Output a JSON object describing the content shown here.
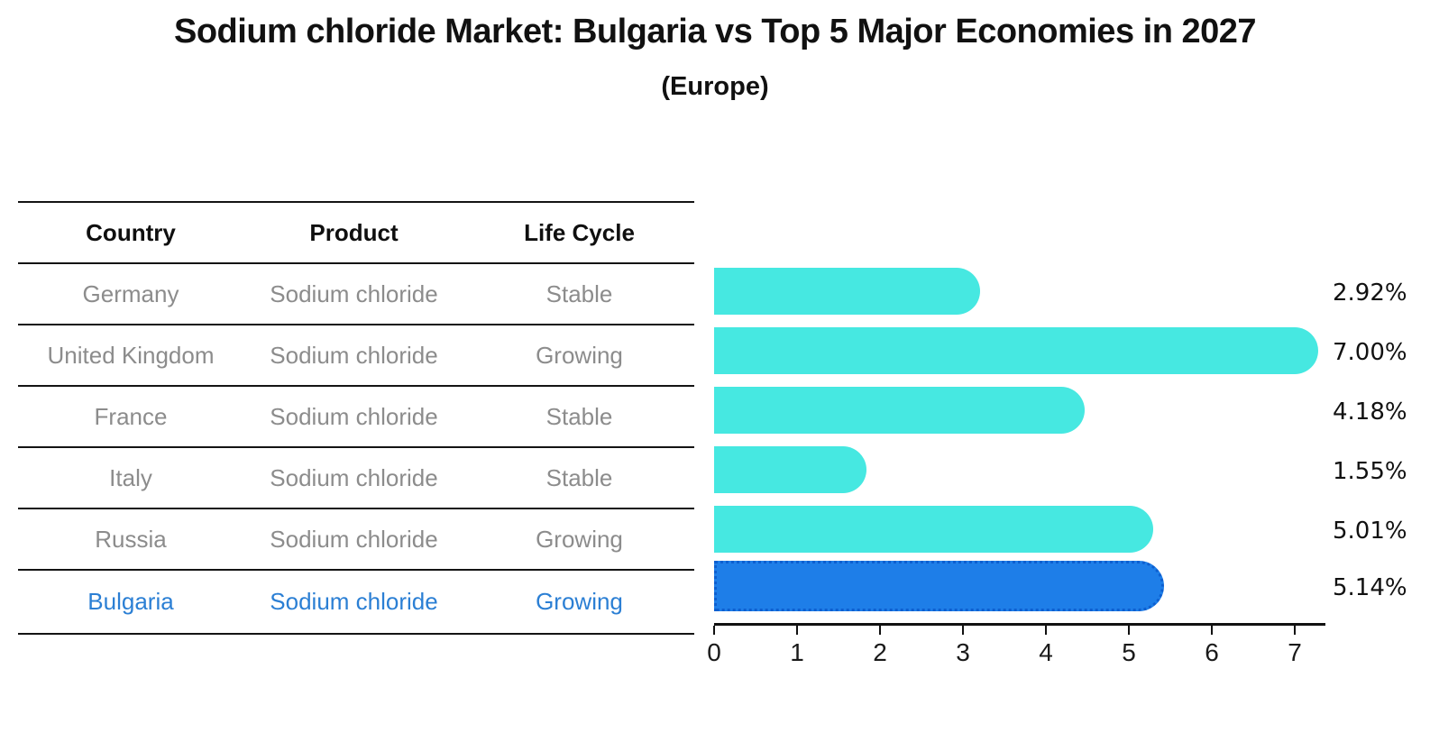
{
  "title": "Sodium chloride Market: Bulgaria vs Top 5 Major Economies in 2027",
  "subtitle": "(Europe)",
  "table": {
    "headers": [
      "Country",
      "Product",
      "Life Cycle"
    ],
    "rows": [
      {
        "country": "Germany",
        "product": "Sodium chloride",
        "life_cycle": "Stable"
      },
      {
        "country": "United Kingdom",
        "product": "Sodium chloride",
        "life_cycle": "Growing"
      },
      {
        "country": "France",
        "product": "Sodium chloride",
        "life_cycle": "Stable"
      },
      {
        "country": "Italy",
        "product": "Sodium chloride",
        "life_cycle": "Stable"
      },
      {
        "country": "Russia",
        "product": "Sodium chloride",
        "life_cycle": "Growing"
      },
      {
        "country": "Bulgaria",
        "product": "Sodium chloride",
        "life_cycle": "Growing"
      }
    ]
  },
  "chart_data": {
    "type": "bar",
    "orientation": "horizontal",
    "categories": [
      "Germany",
      "United Kingdom",
      "France",
      "Italy",
      "Russia",
      "Bulgaria"
    ],
    "values": [
      2.92,
      7.0,
      4.18,
      1.55,
      5.01,
      5.14
    ],
    "value_labels": [
      "2.92%",
      "7.00%",
      "4.18%",
      "1.55%",
      "5.01%",
      "5.14%"
    ],
    "title": "Sodium chloride Market: Bulgaria vs Top 5 Major Economies in 2027 (Europe)",
    "xlabel": "",
    "ylabel": "",
    "xlim": [
      0,
      7.37
    ],
    "xticks": [
      0,
      1,
      2,
      3,
      4,
      5,
      6,
      7
    ],
    "grid": false,
    "legend": false,
    "bar_color": "#46e8e1",
    "highlight_color": "#1e7ee8",
    "highlight_border_color": "#0d5fd0",
    "highlight_index": 5,
    "highlight_style": "dotted-outline"
  },
  "colors": {
    "background": "#ffffff",
    "table_line": "#141414",
    "table_text": "#8c8c8c",
    "table_header_text": "#0f0f0f",
    "highlight_row_text": "#2b7fd4",
    "axis": "#111111",
    "value_label_text": "#111111"
  }
}
